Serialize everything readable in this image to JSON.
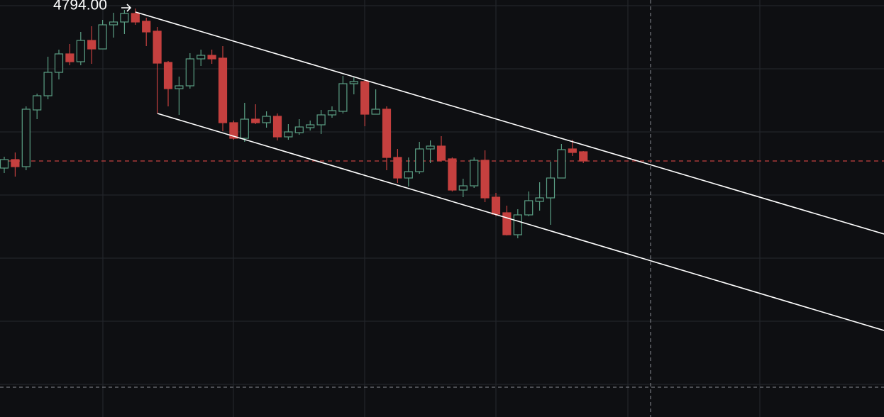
{
  "chart_data": {
    "type": "candlestick",
    "price_label": {
      "value": 4794,
      "label": "4794.00"
    },
    "up_color": "#5a9e84",
    "down_color": "#c5403f",
    "ylim": [
      4506,
      4800
    ],
    "open": [
      4681.5,
      4687.5,
      4682.5,
      4722.5,
      4732.5,
      4749,
      4762,
      4756.5,
      4771.5,
      4765.5,
      4782.5,
      4784.5,
      4790.5,
      4785,
      4778,
      4756,
      4737.5,
      4739.5,
      4758.5,
      4761,
      4759,
      4713.5,
      4702.5,
      4716,
      4713.5,
      4718,
      4703.5,
      4706.5,
      4710,
      4712,
      4719,
      4721.5,
      4741,
      4742.5,
      4719.5,
      4723,
      4689,
      4674.5,
      4679,
      4695,
      4697,
      4688,
      4666,
      4669,
      4687,
      4661,
      4650,
      4634.5,
      4648.5,
      4658,
      4660.5,
      4674.5,
      4695,
      4693
    ],
    "high": [
      4689.5,
      4692.5,
      4725,
      4734,
      4760,
      4765,
      4769,
      4777.5,
      4781.5,
      4786,
      4791,
      4793,
      4794,
      4787.5,
      4781,
      4757,
      4746,
      4762.5,
      4765,
      4765,
      4767.5,
      4715,
      4727.5,
      4726.5,
      4721.5,
      4720,
      4712.5,
      4716,
      4715,
      4722.5,
      4725,
      4746.5,
      4746,
      4744,
      4737,
      4725,
      4695,
      4689,
      4700,
      4701,
      4704,
      4689,
      4674,
      4689,
      4694,
      4664,
      4655,
      4652.5,
      4665,
      4671.5,
      4686,
      4698.5,
      4701.5,
      4693.5
    ],
    "low": [
      4678,
      4675.5,
      4680,
      4716,
      4730,
      4744,
      4754,
      4754,
      4755,
      4765.5,
      4773.5,
      4776,
      4782.5,
      4767.5,
      4720,
      4725,
      4719,
      4737.5,
      4753.5,
      4755,
      4707.5,
      4701.5,
      4700,
      4712.5,
      4710,
      4701,
      4701.5,
      4705,
      4708,
      4705.5,
      4717,
      4720,
      4733.5,
      4711,
      4719.5,
      4680,
      4671,
      4668.5,
      4677.5,
      4685,
      4686,
      4665,
      4661,
      4667.5,
      4657.5,
      4647.5,
      4634,
      4632,
      4647.5,
      4651.5,
      4641.5,
      4674.5,
      4690,
      4685
    ],
    "close": [
      4687.5,
      4682.5,
      4723,
      4732.5,
      4749,
      4762,
      4756.5,
      4771.5,
      4765.5,
      4782.5,
      4784.5,
      4790.5,
      4784.5,
      4777.5,
      4755.5,
      4737.5,
      4739.5,
      4758.5,
      4761,
      4758.5,
      4713.5,
      4702.5,
      4716,
      4713.5,
      4718,
      4703.5,
      4707,
      4710.5,
      4712,
      4719,
      4722,
      4741,
      4742.5,
      4719.5,
      4723,
      4689,
      4674.5,
      4679,
      4695,
      4697,
      4687,
      4666,
      4669,
      4687,
      4660.5,
      4649,
      4634.5,
      4648.5,
      4658.5,
      4660.5,
      4674.5,
      4694.5,
      4692.5,
      4686.5
    ]
  }
}
